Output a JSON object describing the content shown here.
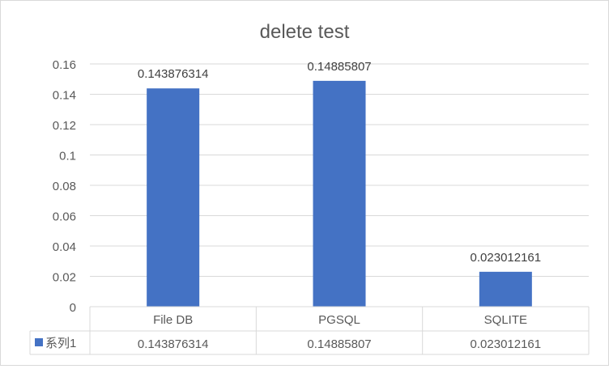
{
  "chart_data": {
    "type": "bar",
    "title": "delete test",
    "categories": [
      "File DB",
      "PGSQL",
      "SQLITE"
    ],
    "series": [
      {
        "name": "系列1",
        "values": [
          0.143876314,
          0.14885807,
          0.023012161
        ],
        "value_labels": [
          "0.143876314",
          "0.14885807",
          "0.023012161"
        ],
        "color": "#4472c4"
      }
    ],
    "ylim": [
      0,
      0.16
    ],
    "yticks": [
      0,
      0.02,
      0.04,
      0.06,
      0.08,
      0.1,
      0.12,
      0.14,
      0.16
    ],
    "ytick_labels": [
      "0",
      "0.02",
      "0.04",
      "0.06",
      "0.08",
      "0.1",
      "0.12",
      "0.14",
      "0.16"
    ],
    "grid": true,
    "legend": "data-table",
    "data_table": true
  }
}
